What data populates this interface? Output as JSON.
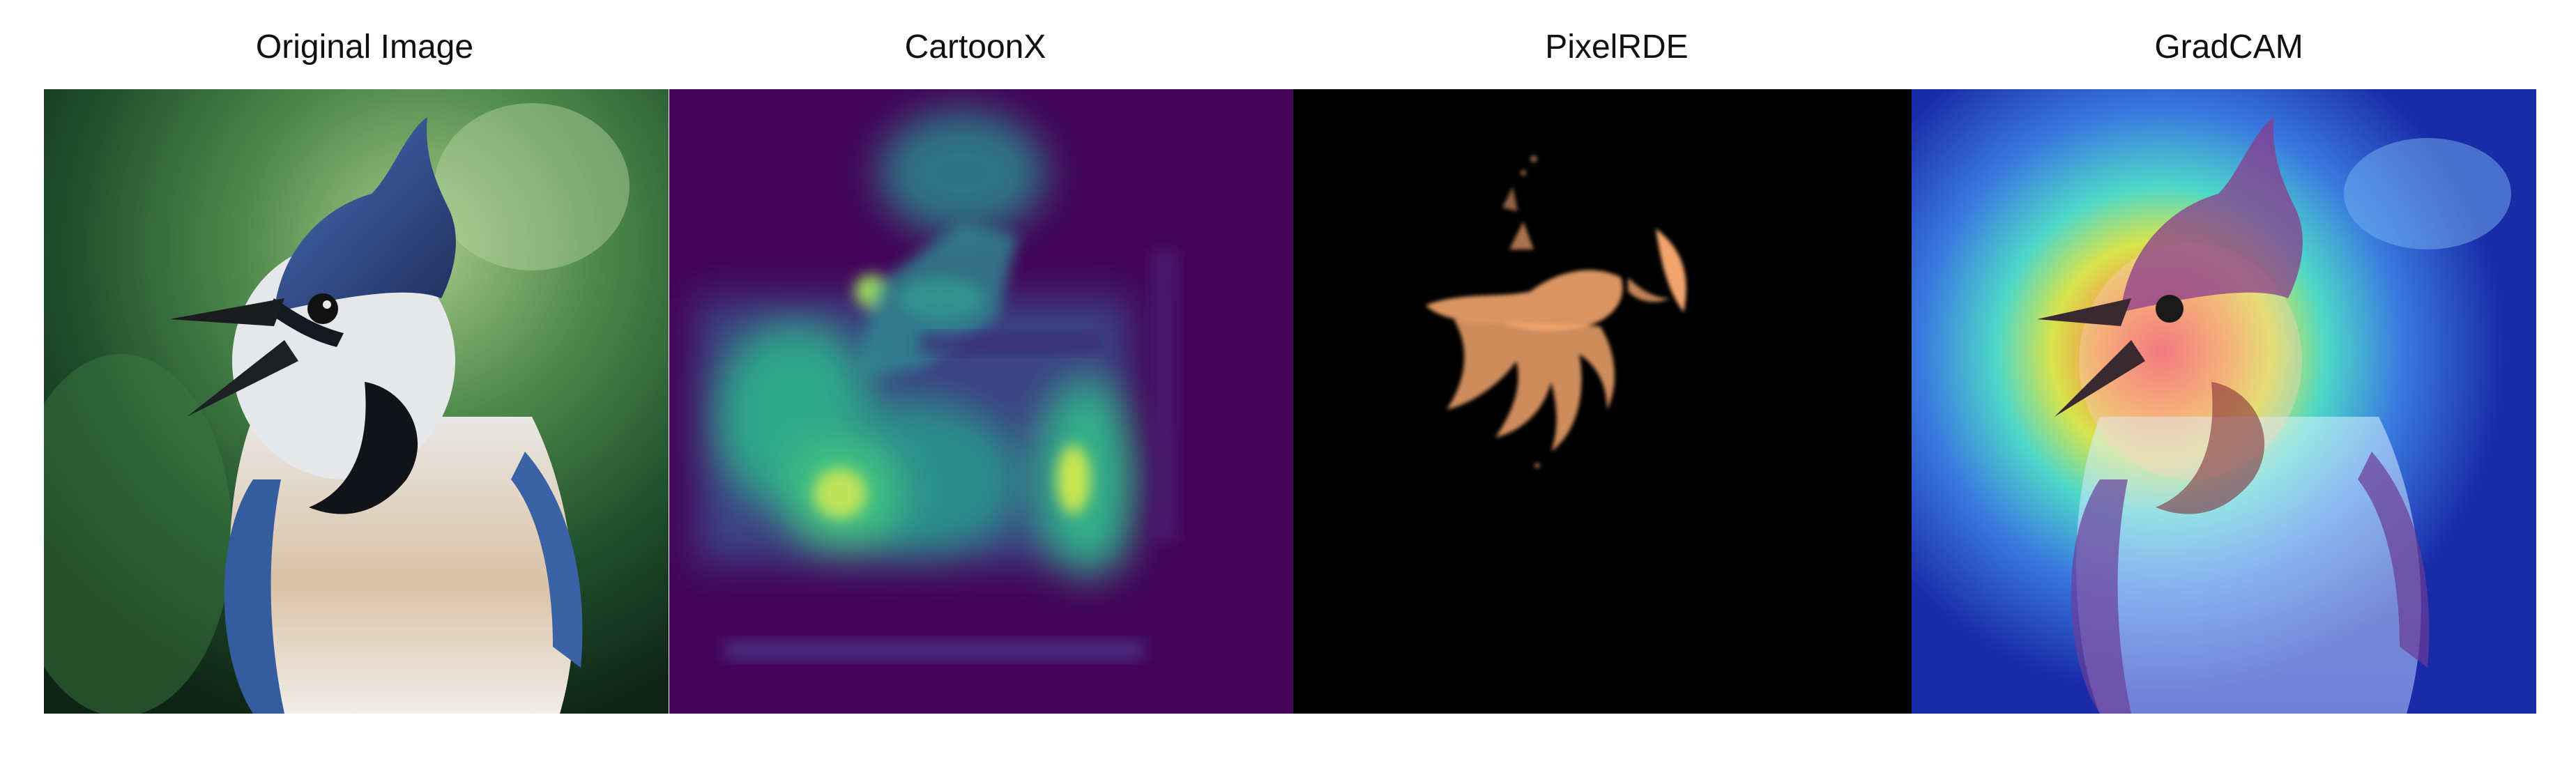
{
  "panels": [
    {
      "title": "Original Image"
    },
    {
      "title": "CartoonX"
    },
    {
      "title": "PixelRDE"
    },
    {
      "title": "GradCAM"
    }
  ],
  "colors": {
    "background_green": "#2f6a38",
    "cartoonx_purple": "#44055a",
    "cartoonx_green": "#3cc08a",
    "cartoonx_yellow": "#d8e84a",
    "pixelrde_black": "#000000",
    "pixelrde_orange": "#f2a46c",
    "gradcam_blue": "#1d2db0",
    "gradcam_red": "#e85060"
  }
}
